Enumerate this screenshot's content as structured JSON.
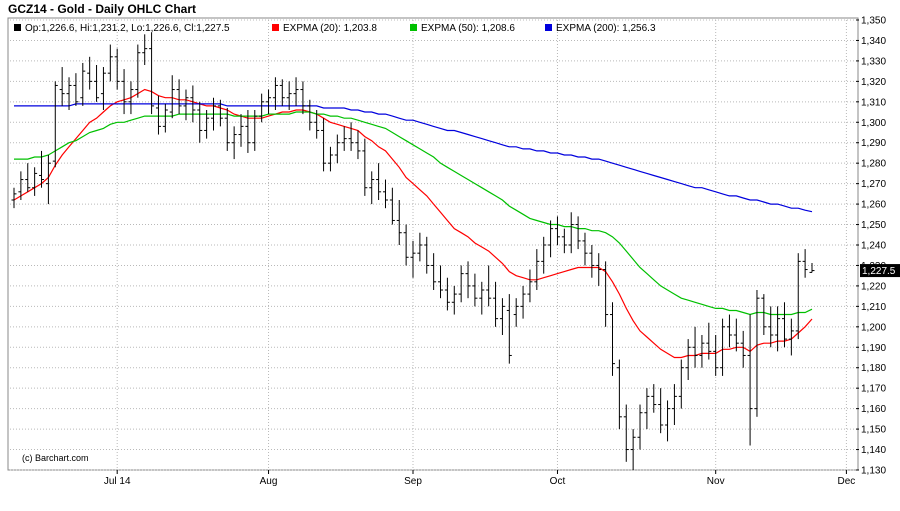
{
  "title": "GCZ14 - Gold - Daily OHLC Chart",
  "watermark": "(c) Barchart.com",
  "colors": {
    "price": "#000000",
    "ema20": "#ff0000",
    "ema50": "#00c000",
    "ema200": "#0000dd",
    "grid": "#b9b9b9"
  },
  "legend": [
    {
      "label": "Op:1,226.6, Hi:1,231.2, Lo:1,226.6, Cl:1,227.5",
      "color": "#000000"
    },
    {
      "label": "EXPMA (20): 1,203.8",
      "color": "#ff0000"
    },
    {
      "label": "EXPMA (50): 1,208.6",
      "color": "#00c000"
    },
    {
      "label": "EXPMA (200): 1,256.3",
      "color": "#0000dd"
    }
  ],
  "last_price_label": "1,227.5",
  "chart_data": {
    "type": "ohlc",
    "title": "GCZ14 - Gold - Daily OHLC Chart",
    "ylim": [
      1130,
      1350
    ],
    "yticks": [
      1130,
      1140,
      1150,
      1160,
      1170,
      1180,
      1190,
      1200,
      1210,
      1220,
      1230,
      1240,
      1250,
      1260,
      1270,
      1280,
      1290,
      1300,
      1310,
      1320,
      1330,
      1340,
      1350
    ],
    "ytick_labels": [
      "1,130",
      "1,140",
      "1,150",
      "1,160",
      "1,170",
      "1,180",
      "1,190",
      "1,200",
      "1,210",
      "1,220",
      "1,230",
      "1,240",
      "1,250",
      "1,260",
      "1,270",
      "1,280",
      "1,290",
      "1,300",
      "1,310",
      "1,320",
      "1,330",
      "1,340",
      "1,350"
    ],
    "month_labels": [
      {
        "label": "Jul 14",
        "index": 15
      },
      {
        "label": "Aug",
        "index": 37
      },
      {
        "label": "Sep",
        "index": 58
      },
      {
        "label": "Oct",
        "index": 79
      },
      {
        "label": "Nov",
        "index": 102
      },
      {
        "label": "Dec",
        "index": 121
      }
    ],
    "ohlc": [
      [
        1262,
        1268,
        1258,
        1265
      ],
      [
        1266,
        1276,
        1262,
        1272
      ],
      [
        1272,
        1280,
        1266,
        1268
      ],
      [
        1268,
        1278,
        1264,
        1275
      ],
      [
        1274,
        1286,
        1268,
        1272
      ],
      [
        1270,
        1284,
        1260,
        1280
      ],
      [
        1281,
        1320,
        1278,
        1318
      ],
      [
        1316,
        1327,
        1308,
        1314
      ],
      [
        1314,
        1322,
        1306,
        1318
      ],
      [
        1318,
        1324,
        1308,
        1310
      ],
      [
        1312,
        1329,
        1308,
        1325
      ],
      [
        1324,
        1332,
        1316,
        1320
      ],
      [
        1320,
        1328,
        1310,
        1312
      ],
      [
        1314,
        1327,
        1306,
        1324
      ],
      [
        1324,
        1338,
        1320,
        1332
      ],
      [
        1332,
        1336,
        1316,
        1320
      ],
      [
        1320,
        1326,
        1304,
        1310
      ],
      [
        1310,
        1320,
        1304,
        1316
      ],
      [
        1316,
        1338,
        1312,
        1334
      ],
      [
        1334,
        1343,
        1328,
        1336
      ],
      [
        1336,
        1344,
        1304,
        1308
      ],
      [
        1307,
        1313,
        1294,
        1298
      ],
      [
        1298,
        1309,
        1295,
        1306
      ],
      [
        1305,
        1323,
        1302,
        1316
      ],
      [
        1316,
        1321,
        1304,
        1308
      ],
      [
        1308,
        1316,
        1301,
        1312
      ],
      [
        1312,
        1318,
        1300,
        1306
      ],
      [
        1306,
        1310,
        1290,
        1296
      ],
      [
        1296,
        1306,
        1292,
        1302
      ],
      [
        1302,
        1312,
        1296,
        1308
      ],
      [
        1308,
        1311,
        1298,
        1302
      ],
      [
        1302,
        1307,
        1286,
        1290
      ],
      [
        1290,
        1298,
        1282,
        1294
      ],
      [
        1294,
        1304,
        1288,
        1298
      ],
      [
        1298,
        1306,
        1285,
        1290
      ],
      [
        1290,
        1306,
        1286,
        1303
      ],
      [
        1303,
        1314,
        1300,
        1310
      ],
      [
        1310,
        1316,
        1304,
        1312
      ],
      [
        1312,
        1322,
        1306,
        1318
      ],
      [
        1318,
        1321,
        1308,
        1312
      ],
      [
        1312,
        1320,
        1306,
        1314
      ],
      [
        1314,
        1322,
        1308,
        1316
      ],
      [
        1316,
        1320,
        1304,
        1308
      ],
      [
        1308,
        1311,
        1296,
        1300
      ],
      [
        1300,
        1306,
        1292,
        1296
      ],
      [
        1296,
        1302,
        1276,
        1280
      ],
      [
        1280,
        1288,
        1276,
        1284
      ],
      [
        1284,
        1294,
        1280,
        1290
      ],
      [
        1290,
        1298,
        1286,
        1292
      ],
      [
        1292,
        1300,
        1286,
        1290
      ],
      [
        1290,
        1296,
        1282,
        1286
      ],
      [
        1286,
        1292,
        1264,
        1268
      ],
      [
        1268,
        1276,
        1260,
        1272
      ],
      [
        1272,
        1280,
        1262,
        1266
      ],
      [
        1266,
        1272,
        1258,
        1262
      ],
      [
        1262,
        1268,
        1250,
        1252
      ],
      [
        1252,
        1262,
        1240,
        1246
      ],
      [
        1246,
        1250,
        1230,
        1234
      ],
      [
        1234,
        1242,
        1224,
        1236
      ],
      [
        1236,
        1246,
        1232,
        1240
      ],
      [
        1240,
        1244,
        1226,
        1230
      ],
      [
        1230,
        1236,
        1218,
        1222
      ],
      [
        1222,
        1230,
        1214,
        1218
      ],
      [
        1218,
        1224,
        1208,
        1212
      ],
      [
        1212,
        1220,
        1206,
        1216
      ],
      [
        1216,
        1230,
        1212,
        1226
      ],
      [
        1226,
        1232,
        1214,
        1220
      ],
      [
        1220,
        1226,
        1210,
        1214
      ],
      [
        1214,
        1222,
        1206,
        1218
      ],
      [
        1218,
        1230,
        1210,
        1214
      ],
      [
        1214,
        1222,
        1200,
        1204
      ],
      [
        1204,
        1214,
        1196,
        1210
      ],
      [
        1208,
        1216,
        1182,
        1186
      ],
      [
        1206,
        1214,
        1200,
        1210
      ],
      [
        1210,
        1220,
        1204,
        1216
      ],
      [
        1216,
        1228,
        1212,
        1222
      ],
      [
        1222,
        1238,
        1218,
        1232
      ],
      [
        1232,
        1244,
        1226,
        1240
      ],
      [
        1240,
        1252,
        1234,
        1248
      ],
      [
        1248,
        1254,
        1240,
        1244
      ],
      [
        1244,
        1248,
        1236,
        1240
      ],
      [
        1240,
        1256,
        1236,
        1250
      ],
      [
        1250,
        1254,
        1238,
        1242
      ],
      [
        1242,
        1246,
        1230,
        1236
      ],
      [
        1236,
        1240,
        1224,
        1230
      ],
      [
        1230,
        1236,
        1220,
        1228
      ],
      [
        1228,
        1232,
        1200,
        1206
      ],
      [
        1206,
        1212,
        1176,
        1182
      ],
      [
        1180,
        1184,
        1150,
        1156
      ],
      [
        1156,
        1162,
        1134,
        1140
      ],
      [
        1140,
        1150,
        1130,
        1146
      ],
      [
        1146,
        1162,
        1140,
        1158
      ],
      [
        1158,
        1170,
        1150,
        1166
      ],
      [
        1166,
        1172,
        1158,
        1162
      ],
      [
        1162,
        1170,
        1148,
        1152
      ],
      [
        1152,
        1164,
        1144,
        1160
      ],
      [
        1160,
        1172,
        1152,
        1166
      ],
      [
        1166,
        1184,
        1160,
        1180
      ],
      [
        1180,
        1194,
        1174,
        1190
      ],
      [
        1190,
        1200,
        1180,
        1186
      ],
      [
        1186,
        1196,
        1180,
        1192
      ],
      [
        1192,
        1202,
        1184,
        1188
      ],
      [
        1188,
        1196,
        1176,
        1180
      ],
      [
        1180,
        1204,
        1176,
        1200
      ],
      [
        1200,
        1206,
        1190,
        1196
      ],
      [
        1196,
        1204,
        1188,
        1192
      ],
      [
        1192,
        1198,
        1180,
        1186
      ],
      [
        1186,
        1206,
        1142,
        1160
      ],
      [
        1160,
        1218,
        1156,
        1214
      ],
      [
        1214,
        1216,
        1196,
        1200
      ],
      [
        1200,
        1210,
        1190,
        1196
      ],
      [
        1196,
        1210,
        1188,
        1204
      ],
      [
        1204,
        1212,
        1190,
        1194
      ],
      [
        1194,
        1204,
        1186,
        1198
      ],
      [
        1198,
        1236,
        1194,
        1232
      ],
      [
        1232,
        1238,
        1224,
        1228
      ],
      [
        1226.6,
        1231.2,
        1226.6,
        1227.5
      ]
    ],
    "ema20": [
      1262,
      1264,
      1266,
      1268,
      1270,
      1273,
      1279,
      1284,
      1288,
      1292,
      1296,
      1300,
      1302,
      1305,
      1308,
      1310,
      1311,
      1312,
      1314,
      1316,
      1315,
      1313,
      1312,
      1312,
      1311,
      1311,
      1310,
      1309,
      1308,
      1308,
      1307,
      1306,
      1304,
      1303,
      1302,
      1302,
      1302,
      1303,
      1304,
      1305,
      1305,
      1306,
      1306,
      1305,
      1304,
      1302,
      1300,
      1299,
      1298,
      1297,
      1296,
      1293,
      1291,
      1288,
      1286,
      1282,
      1278,
      1273,
      1270,
      1267,
      1264,
      1260,
      1256,
      1252,
      1248,
      1246,
      1244,
      1241,
      1239,
      1237,
      1234,
      1231,
      1227,
      1225,
      1224,
      1223,
      1223,
      1224,
      1225,
      1226,
      1227,
      1228,
      1229,
      1229,
      1229,
      1229,
      1227,
      1222,
      1216,
      1209,
      1203,
      1198,
      1195,
      1192,
      1189,
      1187,
      1185,
      1185,
      1186,
      1186,
      1187,
      1187,
      1187,
      1189,
      1189,
      1190,
      1190,
      1188,
      1191,
      1192,
      1192,
      1193,
      1193,
      1194,
      1197,
      1200,
      1203.8
    ],
    "ema50": [
      1282,
      1282,
      1282,
      1283,
      1283,
      1284,
      1286,
      1288,
      1290,
      1291,
      1293,
      1295,
      1296,
      1297,
      1299,
      1300,
      1300,
      1301,
      1302,
      1303,
      1303,
      1303,
      1303,
      1303,
      1304,
      1304,
      1304,
      1304,
      1304,
      1304,
      1304,
      1304,
      1303,
      1303,
      1303,
      1303,
      1303,
      1304,
      1304,
      1304,
      1304,
      1305,
      1305,
      1305,
      1304,
      1304,
      1303,
      1303,
      1302,
      1302,
      1301,
      1300,
      1299,
      1298,
      1297,
      1295,
      1293,
      1291,
      1289,
      1287,
      1285,
      1283,
      1280,
      1278,
      1276,
      1274,
      1272,
      1270,
      1268,
      1266,
      1264,
      1262,
      1259,
      1257,
      1255,
      1253,
      1252,
      1251,
      1250,
      1250,
      1249,
      1249,
      1248,
      1248,
      1247,
      1247,
      1246,
      1244,
      1241,
      1237,
      1233,
      1229,
      1226,
      1223,
      1220,
      1218,
      1216,
      1214,
      1213,
      1212,
      1211,
      1210,
      1209,
      1209,
      1208,
      1208,
      1207,
      1206,
      1207,
      1207,
      1206,
      1206,
      1206,
      1206,
      1207,
      1207,
      1208.6
    ],
    "ema200": [
      1308,
      1308,
      1308,
      1308,
      1308,
      1308,
      1308,
      1308,
      1308,
      1309,
      1309,
      1309,
      1309,
      1309,
      1309,
      1309,
      1309,
      1309,
      1309,
      1309,
      1309,
      1309,
      1309,
      1309,
      1309,
      1309,
      1309,
      1309,
      1309,
      1309,
      1309,
      1308,
      1308,
      1308,
      1308,
      1308,
      1308,
      1308,
      1308,
      1308,
      1308,
      1308,
      1308,
      1308,
      1308,
      1307,
      1307,
      1307,
      1307,
      1306,
      1306,
      1305,
      1305,
      1304,
      1304,
      1303,
      1302,
      1301,
      1301,
      1300,
      1299,
      1298,
      1297,
      1296,
      1296,
      1295,
      1294,
      1293,
      1292,
      1291,
      1290,
      1289,
      1288,
      1288,
      1287,
      1287,
      1286,
      1286,
      1285,
      1285,
      1284,
      1284,
      1283,
      1283,
      1282,
      1282,
      1281,
      1280,
      1279,
      1278,
      1277,
      1276,
      1275,
      1274,
      1273,
      1272,
      1271,
      1270,
      1269,
      1268,
      1268,
      1267,
      1266,
      1265,
      1264,
      1264,
      1263,
      1262,
      1262,
      1261,
      1260,
      1260,
      1259,
      1258,
      1258,
      1257,
      1256.3
    ]
  }
}
